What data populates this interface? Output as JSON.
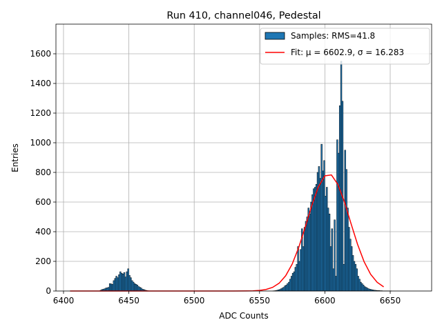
{
  "chart_data": {
    "type": "histogram",
    "title": "Run 410, channel046, Pedestal",
    "xlabel": "ADC Counts",
    "ylabel": "Entries",
    "name": "Samples: RMS=41.8",
    "color": "#1f77b4",
    "edgecolor": "#000000",
    "bins": [
      6428,
      6429,
      6430,
      6431,
      6432,
      6433,
      6434,
      6435,
      6436,
      6437,
      6438,
      6439,
      6440,
      6441,
      6442,
      6443,
      6444,
      6445,
      6446,
      6447,
      6448,
      6449,
      6450,
      6451,
      6452,
      6453,
      6454,
      6455,
      6456,
      6457,
      6458,
      6459,
      6460,
      6461,
      6462,
      6463,
      6464,
      6465,
      6466,
      6467,
      6468,
      6469,
      6470,
      6471,
      6472,
      6473,
      6474,
      6475,
      6476,
      6477,
      6478,
      6479,
      6480,
      6481,
      6482,
      6483,
      6484,
      6485,
      6486,
      6487,
      6488,
      6489,
      6490,
      6491,
      6492,
      6493,
      6494,
      6495,
      6496,
      6497,
      6498,
      6499,
      6500,
      6501,
      6502,
      6503,
      6504,
      6505,
      6506,
      6507,
      6508,
      6509,
      6510,
      6511,
      6512,
      6513,
      6514,
      6515,
      6516,
      6517,
      6518,
      6519,
      6520,
      6521,
      6522,
      6523,
      6524,
      6525,
      6526,
      6527,
      6528,
      6529,
      6530,
      6531,
      6532,
      6533,
      6534,
      6535,
      6536,
      6537,
      6538,
      6539,
      6540,
      6541,
      6542,
      6543,
      6544,
      6545,
      6546,
      6547,
      6548,
      6549,
      6550,
      6551,
      6552,
      6553,
      6554,
      6555,
      6556,
      6557,
      6558,
      6559,
      6560,
      6561,
      6562,
      6563,
      6564,
      6565,
      6566,
      6567,
      6568,
      6569,
      6570,
      6571,
      6572,
      6573,
      6574,
      6575,
      6576,
      6577,
      6578,
      6579,
      6580,
      6581,
      6582,
      6583,
      6584,
      6585,
      6586,
      6587,
      6588,
      6589,
      6590,
      6591,
      6592,
      6593,
      6594,
      6595,
      6596,
      6597,
      6598,
      6599,
      6600,
      6601,
      6602,
      6603,
      6604,
      6605,
      6606,
      6607,
      6608,
      6609,
      6610,
      6611,
      6612,
      6613,
      6614,
      6615,
      6616,
      6617,
      6618,
      6619,
      6620,
      6621,
      6622,
      6623,
      6624,
      6625,
      6626,
      6627,
      6628,
      6629,
      6630,
      6631,
      6632,
      6633,
      6634,
      6635,
      6636,
      6637,
      6638,
      6639,
      6640,
      6641,
      6642,
      6643,
      6644,
      6645,
      6646,
      6647,
      6648,
      6649,
      6650,
      6651,
      6652,
      6653,
      6654,
      6655
    ],
    "counts": [
      5,
      10,
      12,
      15,
      20,
      22,
      25,
      50,
      48,
      45,
      70,
      85,
      100,
      90,
      110,
      130,
      120,
      115,
      125,
      95,
      130,
      150,
      105,
      90,
      70,
      60,
      50,
      45,
      40,
      30,
      25,
      20,
      12,
      10,
      6,
      4,
      2,
      1,
      0,
      0,
      0,
      0,
      0,
      0,
      0,
      0,
      0,
      0,
      0,
      0,
      0,
      0,
      0,
      0,
      0,
      0,
      0,
      0,
      0,
      0,
      0,
      0,
      0,
      0,
      0,
      0,
      0,
      0,
      0,
      0,
      0,
      0,
      0,
      0,
      0,
      0,
      0,
      0,
      0,
      0,
      0,
      0,
      0,
      0,
      0,
      0,
      0,
      0,
      0,
      0,
      0,
      0,
      0,
      0,
      0,
      0,
      0,
      0,
      0,
      0,
      0,
      0,
      0,
      0,
      0,
      0,
      0,
      0,
      0,
      0,
      0,
      0,
      0,
      0,
      0,
      0,
      0,
      0,
      0,
      0,
      0,
      0,
      0,
      0,
      0,
      0,
      0,
      0,
      0,
      0,
      0,
      0,
      1,
      2,
      3,
      5,
      8,
      10,
      15,
      20,
      25,
      35,
      40,
      50,
      60,
      80,
      100,
      120,
      130,
      160,
      180,
      300,
      200,
      280,
      420,
      300,
      430,
      470,
      500,
      560,
      520,
      600,
      650,
      690,
      700,
      720,
      800,
      840,
      760,
      990,
      810,
      880,
      640,
      700,
      560,
      520,
      300,
      420,
      150,
      480,
      100,
      1020,
      930,
      1250,
      1550,
      1280,
      180,
      950,
      820,
      560,
      430,
      350,
      300,
      240,
      200,
      180,
      150,
      100,
      80,
      60,
      50,
      40,
      30,
      25,
      20,
      15,
      12,
      10,
      8,
      6,
      5,
      4,
      3,
      3,
      2,
      2,
      1,
      1,
      1,
      1,
      1,
      1,
      1,
      0,
      0,
      0,
      0
    ],
    "fit": {
      "name": "Fit: μ = 6602.9, σ = 16.283",
      "color": "#ff0000",
      "x": [
        6405,
        6450,
        6500,
        6530,
        6540,
        6545,
        6550,
        6555,
        6560,
        6565,
        6570,
        6575,
        6580,
        6585,
        6590,
        6595,
        6600,
        6605,
        6610,
        6615,
        6620,
        6625,
        6630,
        6635,
        6640,
        6645
      ],
      "values": [
        0,
        0,
        0,
        0,
        0.5,
        1.4,
        4,
        10.4,
        24.6,
        52.6,
        102.7,
        182,
        294,
        432,
        577,
        702,
        777,
        783,
        718,
        600,
        455,
        315,
        198,
        113,
        59,
        28
      ]
    },
    "xlim": [
      6394.2,
      6681.7
    ],
    "ylim": [
      0,
      1800
    ],
    "xticks": [
      6400,
      6450,
      6500,
      6550,
      6600,
      6650
    ],
    "yticks": [
      0,
      200,
      400,
      600,
      800,
      1000,
      1200,
      1400,
      1600
    ],
    "grid": true,
    "legend": "upper right"
  }
}
